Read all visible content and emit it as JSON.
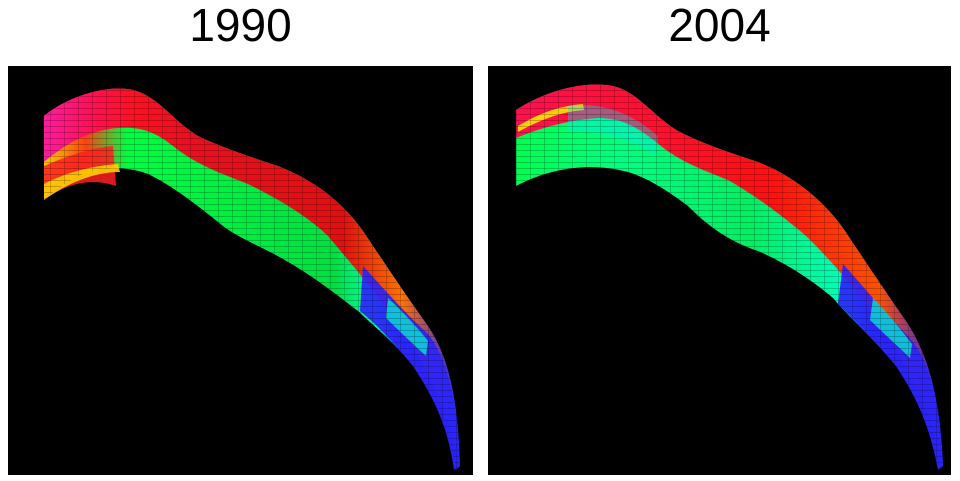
{
  "panels": [
    {
      "title": "1990",
      "palette": [
        "#ff1aa0",
        "#ff0a30",
        "#ff3010",
        "#ffcc00",
        "#00ff40",
        "#00ff80",
        "#00ffd0",
        "#2020ff"
      ]
    },
    {
      "title": "2004",
      "palette": [
        "#ff1050",
        "#ffee00",
        "#00ff40",
        "#00ffb0",
        "#00e0ff",
        "#2020ff"
      ]
    }
  ]
}
